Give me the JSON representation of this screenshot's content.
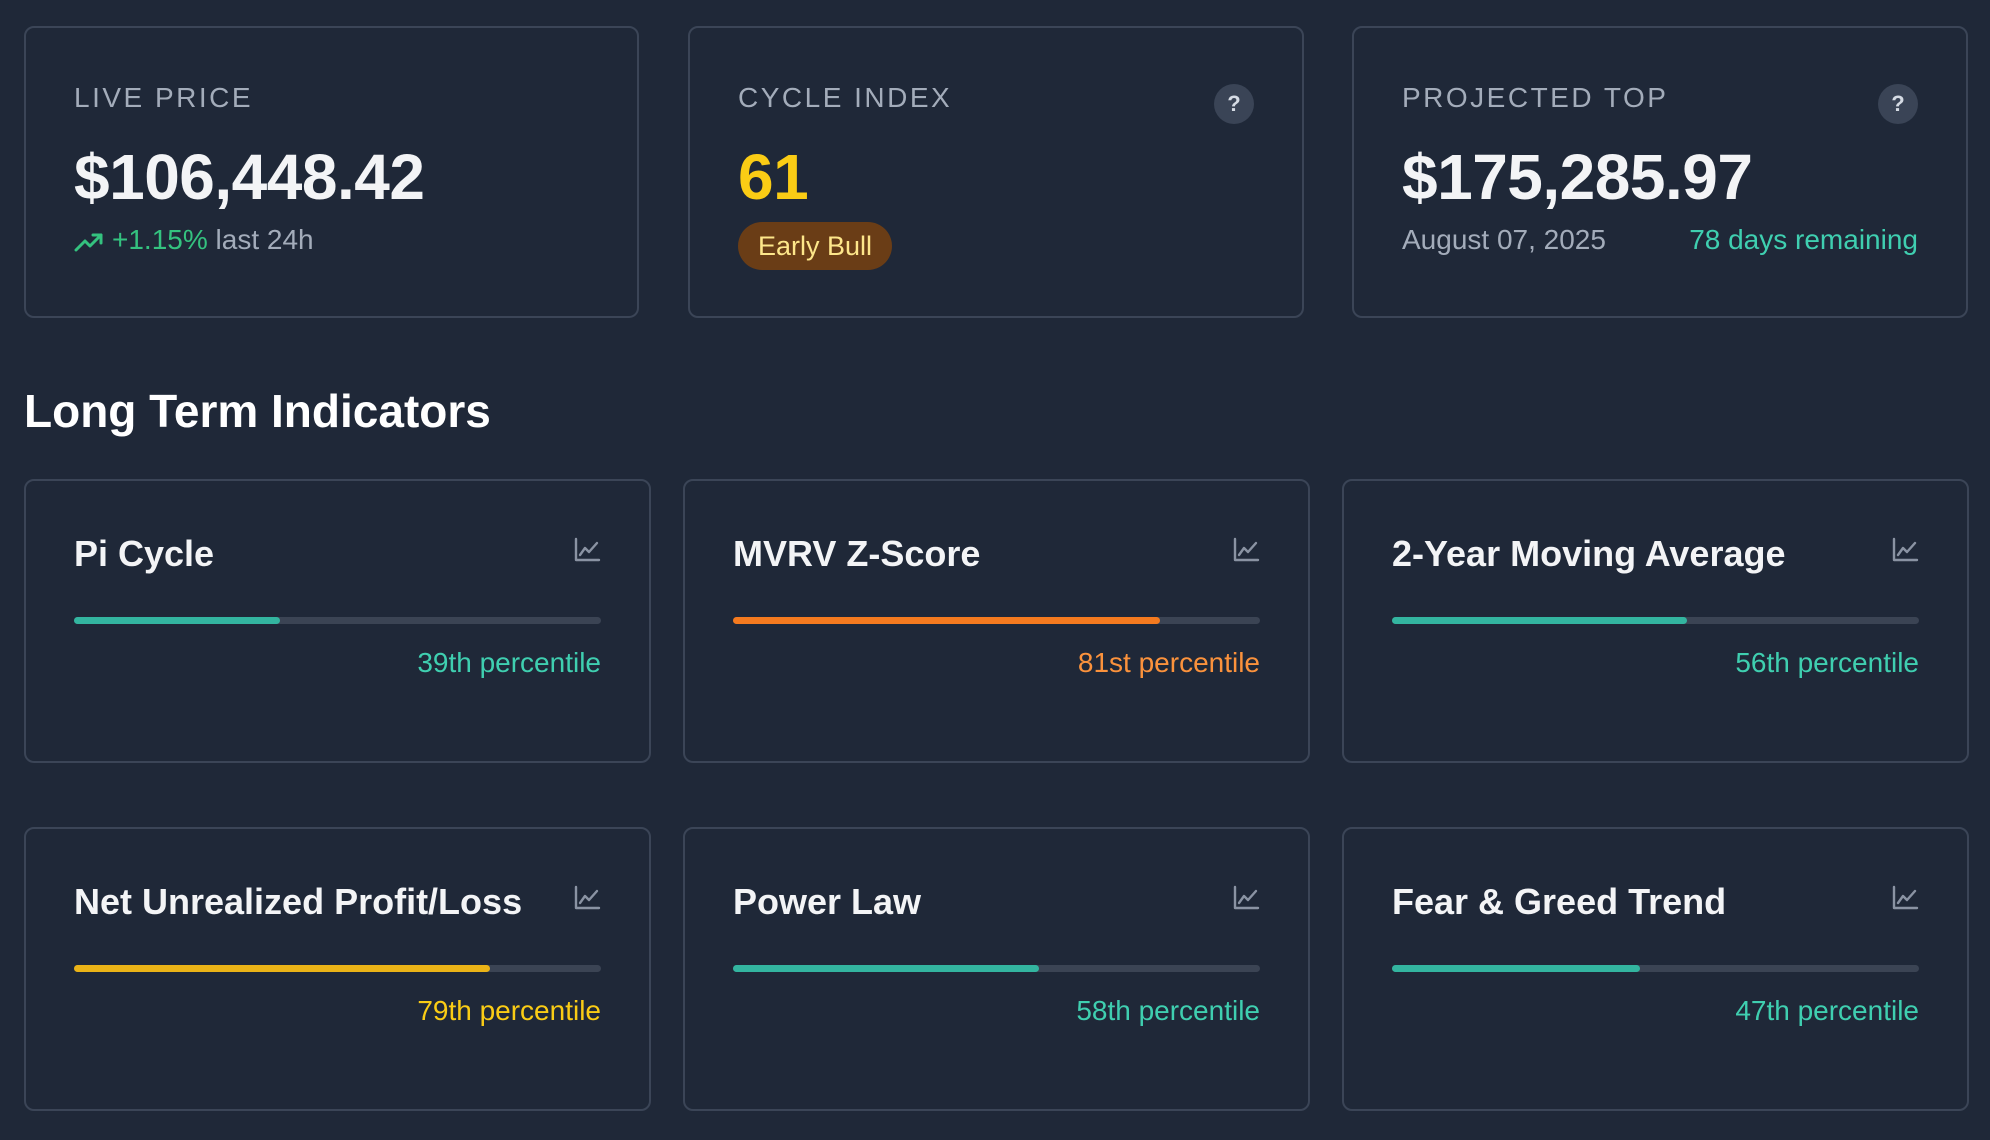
{
  "live_price": {
    "label": "LIVE PRICE",
    "value": "$106,448.42",
    "change": "+1.15%",
    "change_period": "last 24h",
    "trend_icon": "trending-up-icon"
  },
  "cycle_index": {
    "label": "CYCLE INDEX",
    "value": "61",
    "badge": "Early Bull",
    "help_icon": "?"
  },
  "projected_top": {
    "label": "PROJECTED TOP",
    "value": "$175,285.97",
    "date": "August 07, 2025",
    "remaining": "78 days remaining",
    "help_icon": "?"
  },
  "section_title": "Long Term Indicators",
  "indicators": [
    {
      "name": "Pi Cycle",
      "percentile": 39,
      "label": "39th percentile",
      "color": "#33b5a0"
    },
    {
      "name": "MVRV Z-Score",
      "percentile": 81,
      "label": "81st percentile",
      "color": "#f47a1f"
    },
    {
      "name": "2-Year Moving Average",
      "percentile": 56,
      "label": "56th percentile",
      "color": "#33b5a0"
    },
    {
      "name": "Net Unrealized Profit/Loss",
      "percentile": 79,
      "label": "79th percentile",
      "color": "#eab317"
    },
    {
      "name": "Power Law",
      "percentile": 58,
      "label": "58th percentile",
      "color": "#33b5a0"
    },
    {
      "name": "Fear & Greed Trend",
      "percentile": 47,
      "label": "47th percentile",
      "color": "#33b5a0"
    }
  ],
  "colors": {
    "background": "#1f2838",
    "card_border": "#3b4557",
    "accent_teal": "#3fcfb0",
    "accent_yellow": "#facc15",
    "positive": "#34c27f"
  }
}
